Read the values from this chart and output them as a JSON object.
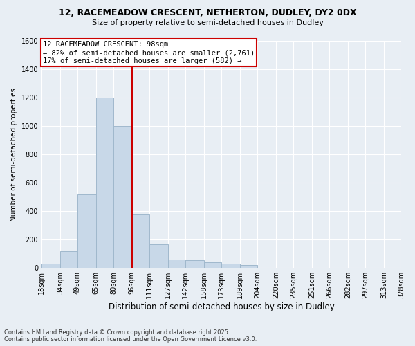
{
  "title_line1": "12, RACEMEADOW CRESCENT, NETHERTON, DUDLEY, DY2 0DX",
  "title_line2": "Size of property relative to semi-detached houses in Dudley",
  "xlabel": "Distribution of semi-detached houses by size in Dudley",
  "ylabel": "Number of semi-detached properties",
  "footnote1": "Contains HM Land Registry data © Crown copyright and database right 2025.",
  "footnote2": "Contains public sector information licensed under the Open Government Licence v3.0.",
  "annotation_title": "12 RACEMEADOW CRESCENT: 98sqm",
  "annotation_line1": "← 82% of semi-detached houses are smaller (2,761)",
  "annotation_line2": "17% of semi-detached houses are larger (582) →",
  "property_size": 98,
  "bin_edges": [
    18,
    34,
    49,
    65,
    80,
    96,
    111,
    127,
    142,
    158,
    173,
    189,
    204,
    220,
    235,
    251,
    266,
    282,
    297,
    313,
    328
  ],
  "bar_values": [
    30,
    120,
    520,
    1200,
    1000,
    380,
    165,
    60,
    55,
    40,
    30,
    20,
    0,
    0,
    0,
    0,
    0,
    0,
    0,
    0
  ],
  "bar_color": "#c8d8e8",
  "bar_edge_color": "#a0b8cc",
  "vline_x": 96,
  "vline_color": "#cc0000",
  "background_color": "#e8eef4",
  "ylim": [
    0,
    1600
  ],
  "yticks": [
    0,
    200,
    400,
    600,
    800,
    1000,
    1200,
    1400,
    1600
  ],
  "grid_color": "#ffffff",
  "annotation_fontsize": 7.5,
  "title_fontsize1": 9,
  "title_fontsize2": 8,
  "ylabel_fontsize": 7.5,
  "xlabel_fontsize": 8.5,
  "tick_fontsize": 7,
  "footnote_fontsize": 6
}
